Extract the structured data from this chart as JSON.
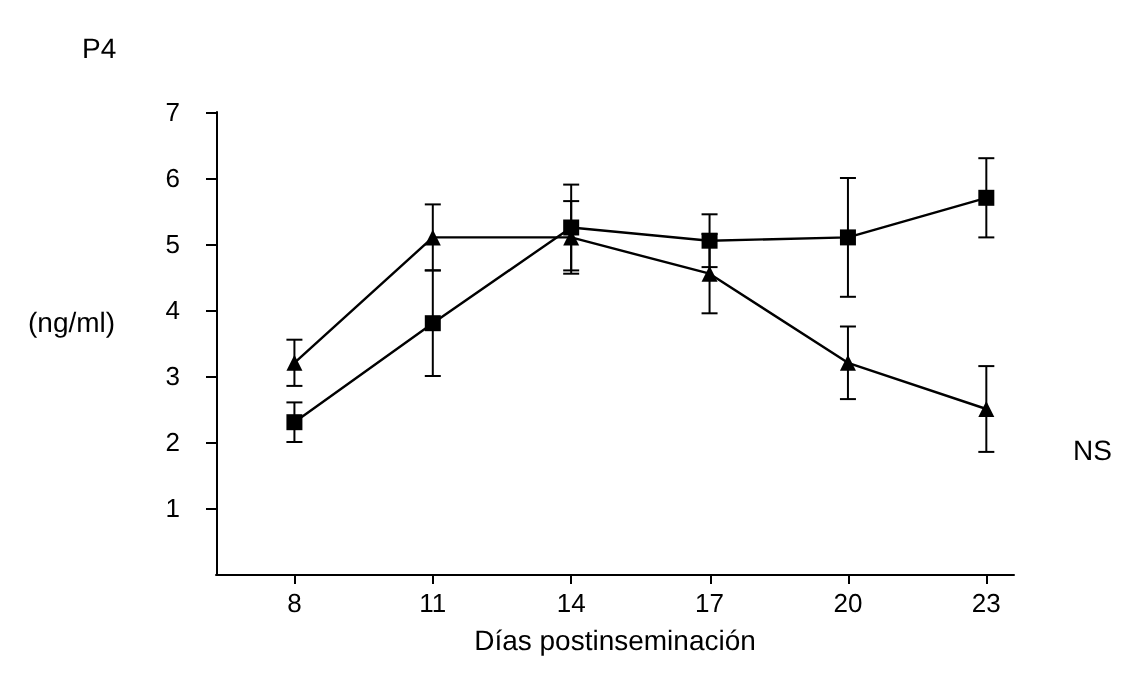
{
  "chart_data": {
    "type": "line",
    "title": "P4",
    "ylabel": "(ng/ml)",
    "xlabel": "Días postinseminación",
    "annotations": [
      "NS"
    ],
    "x": [
      8,
      11,
      14,
      17,
      20,
      23
    ],
    "xlim": [
      6.3,
      23.6
    ],
    "xticks": [
      8,
      11,
      14,
      17,
      20,
      23
    ],
    "ylim": [
      0,
      7
    ],
    "yticks": [
      1,
      2,
      3,
      4,
      5,
      6,
      7
    ],
    "grid": false,
    "line_style": "solid",
    "series": [
      {
        "color": "#000000",
        "marker": "square",
        "values": [
          2.3,
          3.8,
          5.25,
          5.05,
          5.1,
          5.7
        ],
        "errors": [
          0.3,
          0.8,
          0.65,
          0.4,
          0.9,
          0.6
        ]
      },
      {
        "color": "#000000",
        "marker": "triangle",
        "values": [
          3.2,
          5.1,
          5.1,
          4.55,
          3.2,
          2.5
        ],
        "errors": [
          0.35,
          0.5,
          0.55,
          0.6,
          0.55,
          0.65
        ]
      }
    ]
  }
}
